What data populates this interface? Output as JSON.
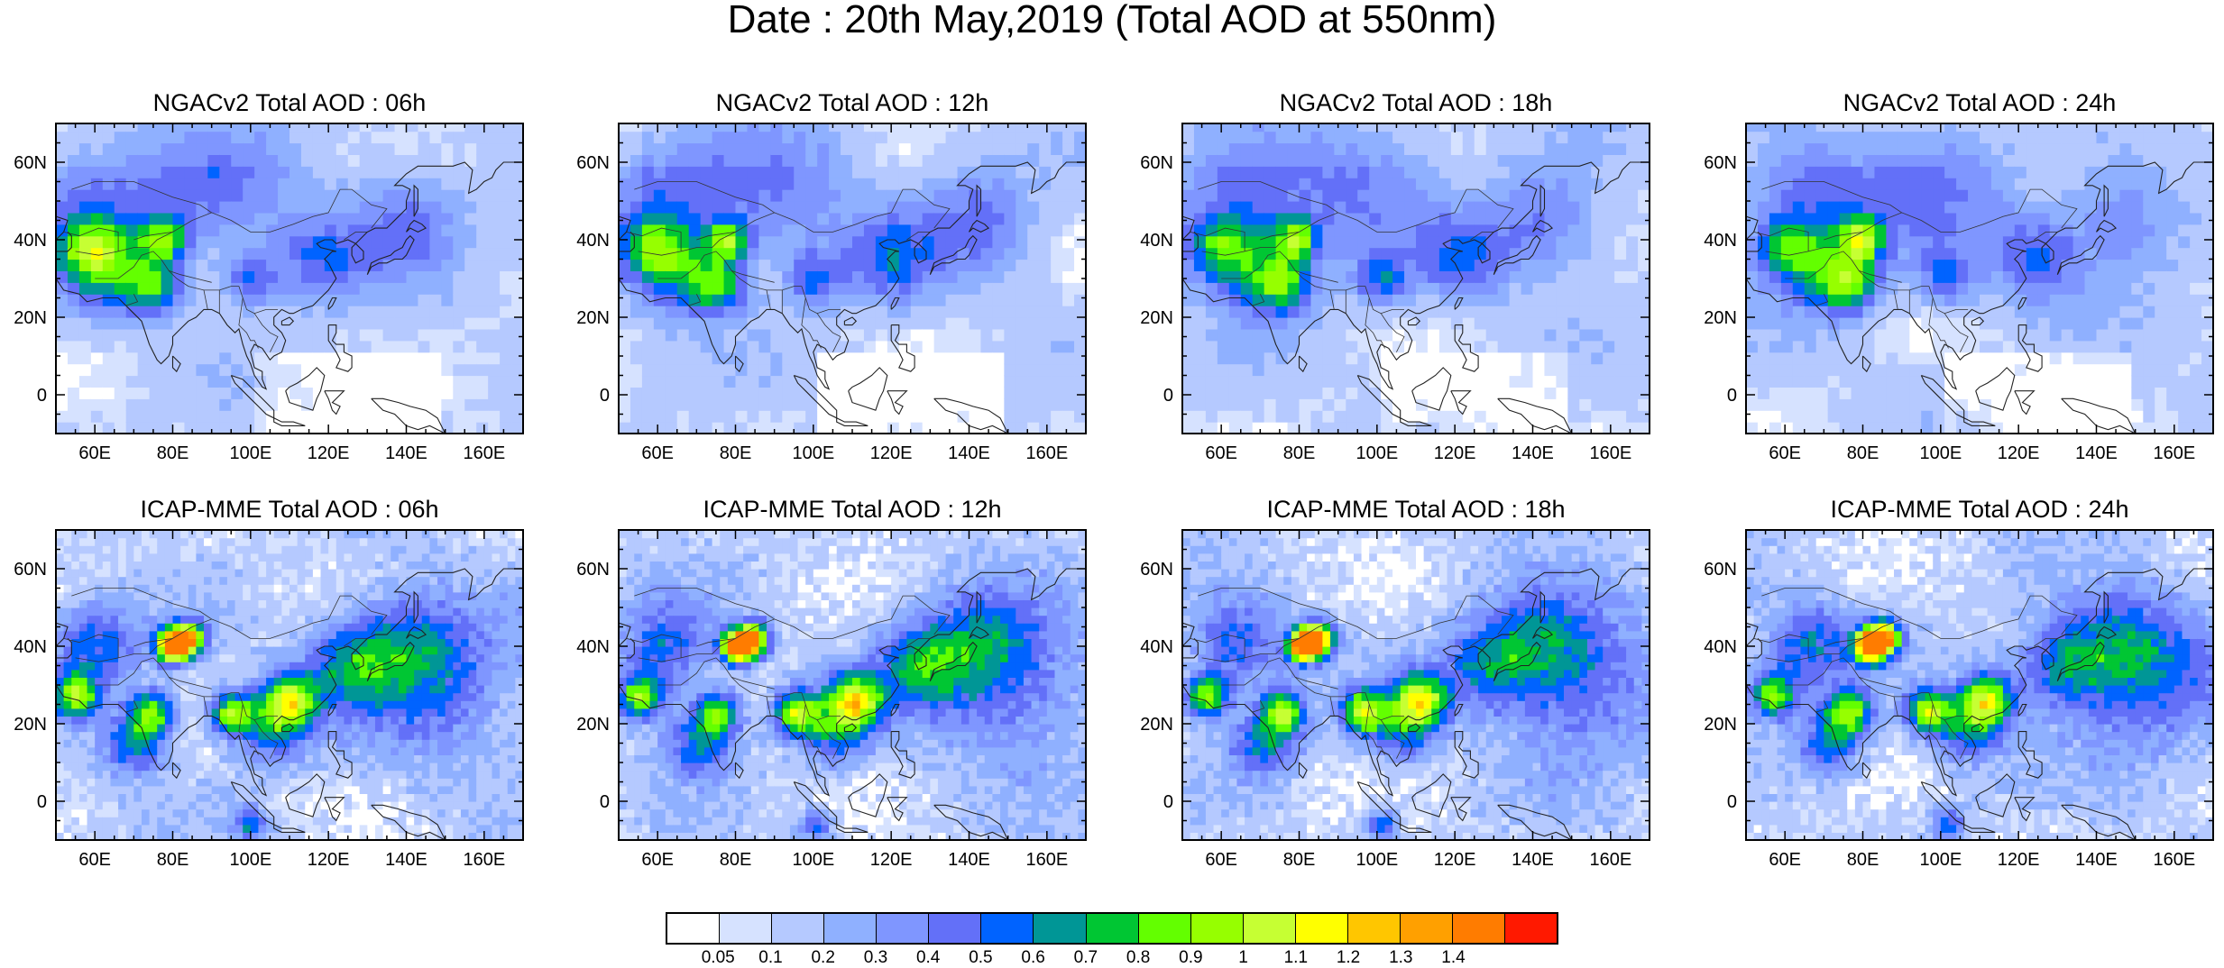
{
  "title": "Date : 20th May,2019 (Total AOD at 550nm)",
  "panels": [
    {
      "id": "ngac-06",
      "title": "NGACv2 Total AOD : 06h",
      "model": "ngac",
      "hour": 6
    },
    {
      "id": "ngac-12",
      "title": "NGACv2 Total AOD : 12h",
      "model": "ngac",
      "hour": 12
    },
    {
      "id": "ngac-18",
      "title": "NGACv2 Total AOD : 18h",
      "model": "ngac",
      "hour": 18
    },
    {
      "id": "ngac-24",
      "title": "NGACv2 Total AOD : 24h",
      "model": "ngac",
      "hour": 24
    },
    {
      "id": "icap-06",
      "title": "ICAP-MME Total AOD : 06h",
      "model": "icap",
      "hour": 6
    },
    {
      "id": "icap-12",
      "title": "ICAP-MME Total AOD : 12h",
      "model": "icap",
      "hour": 12
    },
    {
      "id": "icap-18",
      "title": "ICAP-MME Total AOD : 18h",
      "model": "icap",
      "hour": 18
    },
    {
      "id": "icap-24",
      "title": "ICAP-MME Total AOD : 24h",
      "model": "icap",
      "hour": 24
    }
  ],
  "map_extent": {
    "lon": [
      50,
      170
    ],
    "lat": [
      -10,
      70
    ]
  },
  "x_ticks": [
    "60E",
    "80E",
    "100E",
    "120E",
    "140E",
    "160E"
  ],
  "x_tick_values": [
    60,
    80,
    100,
    120,
    140,
    160
  ],
  "y_ticks": [
    "60N",
    "40N",
    "20N",
    "0"
  ],
  "y_tick_values": [
    60,
    40,
    20,
    0
  ],
  "colorbar": {
    "labels": [
      "0.05",
      "0.1",
      "0.2",
      "0.3",
      "0.4",
      "0.5",
      "0.6",
      "0.7",
      "0.8",
      "0.9",
      "1",
      "1.1",
      "1.2",
      "1.3",
      "1.4"
    ],
    "colors": [
      "#ffffff",
      "#d6e2ff",
      "#b5c9ff",
      "#8fb0ff",
      "#7f96ff",
      "#6370f8",
      "#0063ff",
      "#009696",
      "#00c633",
      "#63ff00",
      "#96ff00",
      "#c6ff33",
      "#ffff00",
      "#ffc600",
      "#ffa000",
      "#ff7c00",
      "#ff1900"
    ]
  }
}
